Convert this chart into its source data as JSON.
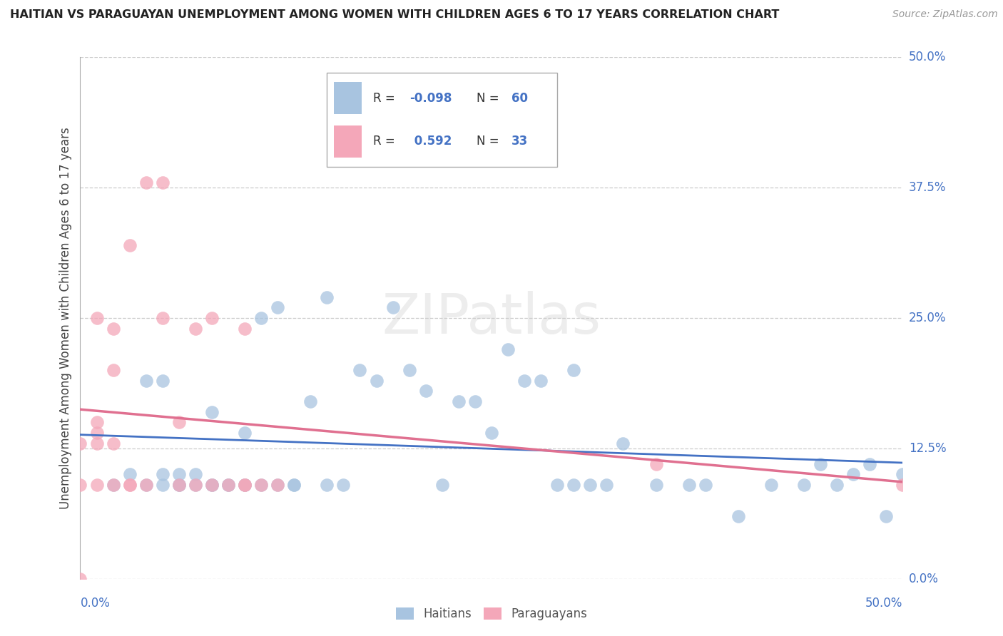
{
  "title": "HAITIAN VS PARAGUAYAN UNEMPLOYMENT AMONG WOMEN WITH CHILDREN AGES 6 TO 17 YEARS CORRELATION CHART",
  "source": "Source: ZipAtlas.com",
  "ylabel": "Unemployment Among Women with Children Ages 6 to 17 years",
  "xlim": [
    0.0,
    0.5
  ],
  "ylim": [
    0.0,
    0.5
  ],
  "yticks": [
    0.0,
    0.125,
    0.25,
    0.375,
    0.5
  ],
  "ytick_labels": [
    "0.0%",
    "12.5%",
    "25.0%",
    "37.5%",
    "50.0%"
  ],
  "haitian_color": "#a8c4e0",
  "paraguayan_color": "#f4a7b9",
  "haitian_line_color": "#4472c4",
  "paraguayan_line_color": "#e07090",
  "r1": "-0.098",
  "n1": "60",
  "r2": "0.592",
  "n2": "33",
  "haitian_x": [
    0.02,
    0.03,
    0.04,
    0.04,
    0.05,
    0.05,
    0.05,
    0.06,
    0.06,
    0.06,
    0.07,
    0.07,
    0.08,
    0.08,
    0.08,
    0.09,
    0.09,
    0.1,
    0.1,
    0.1,
    0.11,
    0.11,
    0.12,
    0.12,
    0.13,
    0.13,
    0.14,
    0.15,
    0.15,
    0.16,
    0.17,
    0.18,
    0.19,
    0.2,
    0.21,
    0.22,
    0.23,
    0.24,
    0.25,
    0.26,
    0.27,
    0.28,
    0.29,
    0.3,
    0.3,
    0.31,
    0.32,
    0.33,
    0.35,
    0.37,
    0.38,
    0.4,
    0.42,
    0.44,
    0.45,
    0.46,
    0.47,
    0.48,
    0.49,
    0.5
  ],
  "haitian_y": [
    0.09,
    0.1,
    0.09,
    0.19,
    0.09,
    0.1,
    0.19,
    0.09,
    0.1,
    0.09,
    0.09,
    0.1,
    0.09,
    0.16,
    0.09,
    0.09,
    0.09,
    0.09,
    0.09,
    0.14,
    0.09,
    0.25,
    0.09,
    0.26,
    0.09,
    0.09,
    0.17,
    0.09,
    0.27,
    0.09,
    0.2,
    0.19,
    0.26,
    0.2,
    0.18,
    0.09,
    0.17,
    0.17,
    0.14,
    0.22,
    0.19,
    0.19,
    0.09,
    0.09,
    0.2,
    0.09,
    0.09,
    0.13,
    0.09,
    0.09,
    0.09,
    0.06,
    0.09,
    0.09,
    0.11,
    0.09,
    0.1,
    0.11,
    0.06,
    0.1
  ],
  "paraguayan_x": [
    0.0,
    0.0,
    0.0,
    0.01,
    0.01,
    0.01,
    0.01,
    0.01,
    0.02,
    0.02,
    0.02,
    0.02,
    0.03,
    0.03,
    0.03,
    0.04,
    0.04,
    0.05,
    0.05,
    0.06,
    0.06,
    0.07,
    0.07,
    0.08,
    0.08,
    0.09,
    0.1,
    0.1,
    0.1,
    0.11,
    0.12,
    0.35,
    0.5
  ],
  "paraguayan_y": [
    0.0,
    0.09,
    0.13,
    0.09,
    0.13,
    0.14,
    0.15,
    0.25,
    0.09,
    0.13,
    0.2,
    0.24,
    0.09,
    0.09,
    0.32,
    0.09,
    0.38,
    0.25,
    0.38,
    0.09,
    0.15,
    0.09,
    0.24,
    0.09,
    0.25,
    0.09,
    0.09,
    0.09,
    0.24,
    0.09,
    0.09,
    0.11,
    0.09
  ]
}
